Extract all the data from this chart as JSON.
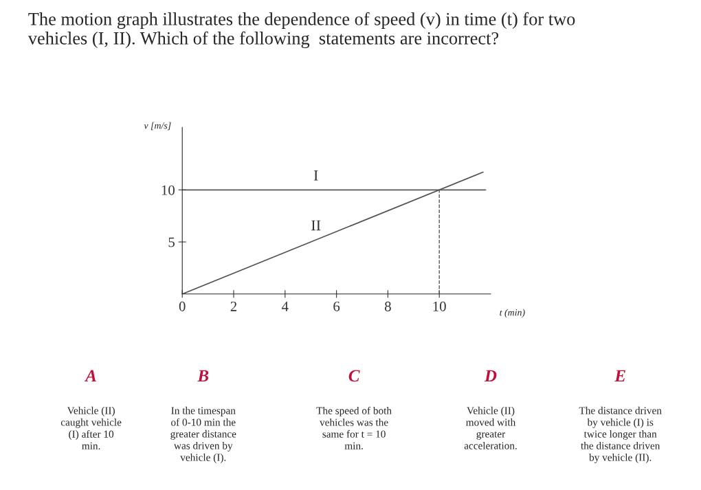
{
  "chart_data": {
    "type": "line",
    "title": "The motion graph illustrates the dependence of speed (v) in time (t) for two\nvehicles (I, II). Which of the following  statements are incorrect?",
    "xlabel": "t (min)",
    "ylabel": "v [m/s]",
    "series": [
      {
        "name": "I",
        "color": "#555555",
        "x": [
          0,
          11.8
        ],
        "values": [
          10,
          10
        ]
      },
      {
        "name": "II",
        "color": "#555555",
        "x": [
          0,
          11.7
        ],
        "values": [
          0,
          11.7
        ]
      }
    ],
    "xlim": [
      0,
      12
    ],
    "ylim": [
      0,
      16
    ],
    "xticks": [
      0,
      2,
      4,
      6,
      8,
      10
    ],
    "yticks": [
      5,
      10
    ],
    "ref_lines": [
      {
        "axis": "x",
        "value": 10,
        "line_style": "dashed",
        "color": "#555555"
      }
    ],
    "grid": false,
    "legend": false,
    "marker": "none",
    "line_style": "solid",
    "annotations": [
      "A",
      "Vehicle (II)\ncaught vehicle\n(I) after 10\nmin.",
      "B",
      "In the timespan\nof 0-10 min the\ngreater distance\nwas driven by\nvehicle (I).",
      "C",
      "The speed of both\nvehicles was the\nsame for t = 10\nmin.",
      "D",
      "Vehicle (II)\nmoved with\ngreater\nacceleration.",
      "E",
      "The distance driven\nby vehicle (I) is\ntwice longer than\nthe distance driven\nby vehicle (II)."
    ]
  }
}
